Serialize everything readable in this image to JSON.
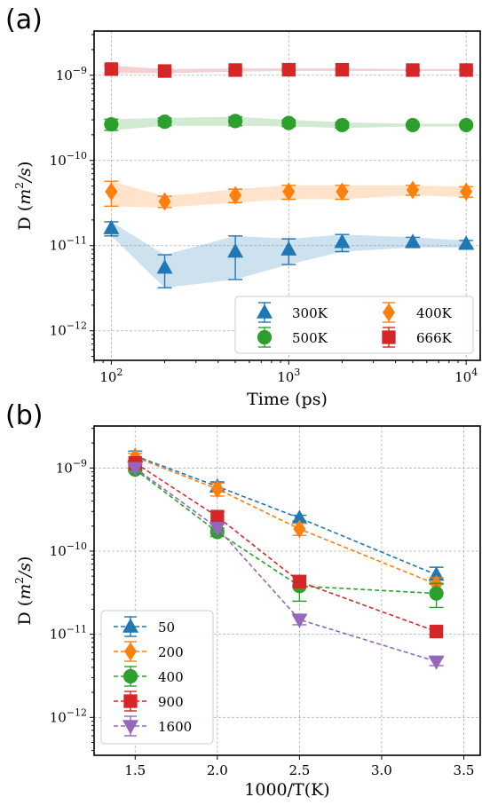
{
  "chart_data": [
    {
      "panel_label": "(a)",
      "type": "line",
      "xlabel": "Time (ps)",
      "ylabel": "D ($m^2/s$)",
      "xscale": "log",
      "yscale": "log",
      "xlim": [
        80,
        12000
      ],
      "ylim": [
        4.5e-13,
        3.3e-09
      ],
      "x_ticks": [
        {
          "value": 100,
          "label": "10^2"
        },
        {
          "value": 1000,
          "label": "10^3"
        },
        {
          "value": 10000,
          "label": "10^4"
        }
      ],
      "y_ticks": [
        {
          "value": 1e-12,
          "label": "10^-12"
        },
        {
          "value": 1e-11,
          "label": "10^-11"
        },
        {
          "value": 1e-10,
          "label": "10^-10"
        },
        {
          "value": 1e-09,
          "label": "10^-9"
        }
      ],
      "grid": true,
      "legend": {
        "placement": "lower-right",
        "columns": 2
      },
      "series": [
        {
          "name": "300K",
          "color": "#1f77b4",
          "marker": "triangle-up",
          "x": [
            100,
            200,
            500,
            1000,
            2000,
            5000,
            10000
          ],
          "y": [
            1.6e-11,
            5.5e-12,
            8.5e-12,
            9e-12,
            1.1e-11,
            1.1e-11,
            1.05e-11
          ],
          "err": [
            3e-12,
            2.3e-12,
            4.5e-12,
            3e-12,
            2.5e-12,
            1.5e-12,
            1e-12
          ]
        },
        {
          "name": "400K",
          "color": "#ff7f0e",
          "marker": "diamond",
          "x": [
            100,
            200,
            500,
            1000,
            2000,
            5000,
            10000
          ],
          "y": [
            4.3e-11,
            3.3e-11,
            3.9e-11,
            4.3e-11,
            4.3e-11,
            4.5e-11,
            4.3e-11
          ],
          "err": [
            1.4e-11,
            5e-12,
            7e-12,
            8e-12,
            8e-12,
            6e-12,
            6e-12
          ]
        },
        {
          "name": "500K",
          "color": "#2ca02c",
          "marker": "circle",
          "x": [
            100,
            200,
            500,
            1000,
            2000,
            5000,
            10000
          ],
          "y": [
            2.65e-10,
            2.85e-10,
            2.9e-10,
            2.75e-10,
            2.6e-10,
            2.6e-10,
            2.6e-10
          ],
          "err": [
            4e-11,
            3e-11,
            3.5e-11,
            2.5e-11,
            2e-11,
            1e-11,
            1e-11
          ]
        },
        {
          "name": "666K",
          "color": "#d62728",
          "marker": "square",
          "x": [
            100,
            200,
            500,
            1000,
            2000,
            5000,
            10000
          ],
          "y": [
            1.18e-09,
            1.12e-09,
            1.15e-09,
            1.16e-09,
            1.16e-09,
            1.15e-09,
            1.15e-09
          ],
          "err": [
            1.2e-10,
            6e-11,
            5e-11,
            4e-11,
            4e-11,
            3e-11,
            3e-11
          ]
        }
      ]
    },
    {
      "panel_label": "(b)",
      "type": "line",
      "xlabel": "1000/T(K)",
      "ylabel": "D ($m^2/s$)",
      "xscale": "linear",
      "yscale": "log",
      "xlim": [
        1.25,
        3.6
      ],
      "ylim": [
        3.5e-13,
        3.2e-09
      ],
      "x_ticks": [
        {
          "value": 1.5,
          "label": "1.5"
        },
        {
          "value": 2.0,
          "label": "2.0"
        },
        {
          "value": 2.5,
          "label": "2.5"
        },
        {
          "value": 3.0,
          "label": "3.0"
        },
        {
          "value": 3.5,
          "label": "3.5"
        }
      ],
      "y_ticks": [
        {
          "value": 1e-12,
          "label": "10^-12"
        },
        {
          "value": 1e-11,
          "label": "10^-11"
        },
        {
          "value": 1e-10,
          "label": "10^-10"
        },
        {
          "value": 1e-09,
          "label": "10^-9"
        }
      ],
      "grid": true,
      "legend": {
        "placement": "lower-left",
        "columns": 1
      },
      "series": [
        {
          "name": "50",
          "color": "#1f77b4",
          "marker": "triangle-up",
          "x": [
            1.5,
            2.0,
            2.5,
            3.333
          ],
          "y": [
            1.4e-09,
            6e-10,
            2.5e-10,
            5.2e-11
          ],
          "err": [
            2e-10,
            8e-11,
            2e-11,
            1.2e-11
          ]
        },
        {
          "name": "200",
          "color": "#ff7f0e",
          "marker": "diamond",
          "x": [
            1.5,
            2.0,
            2.5,
            3.333
          ],
          "y": [
            1.35e-09,
            5.6e-10,
            1.85e-10,
            4e-11
          ],
          "err": [
            1.5e-10,
            1e-10,
            3e-11,
            8e-12
          ]
        },
        {
          "name": "400",
          "color": "#2ca02c",
          "marker": "circle",
          "x": [
            1.5,
            2.0,
            2.5,
            3.333
          ],
          "y": [
            9.6e-10,
            1.7e-10,
            3.8e-11,
            3.1e-11
          ],
          "err": [
            5e-11,
            2e-11,
            1.3e-11,
            1e-11
          ]
        },
        {
          "name": "900",
          "color": "#d62728",
          "marker": "square",
          "x": [
            1.5,
            2.0,
            2.5,
            3.333
          ],
          "y": [
            1.15e-09,
            2.6e-10,
            4.3e-11,
            1.08e-11
          ],
          "err": [
            7e-11,
            4e-11,
            6e-12,
            1e-12
          ]
        },
        {
          "name": "1600",
          "color": "#9467bd",
          "marker": "triangle-down",
          "x": [
            1.5,
            2.0,
            2.5,
            3.333
          ],
          "y": [
            1e-09,
            1.9e-10,
            1.5e-11,
            4.7e-12
          ],
          "err": [
            1e-10,
            2e-11,
            2e-12,
            5e-13
          ]
        }
      ]
    }
  ]
}
